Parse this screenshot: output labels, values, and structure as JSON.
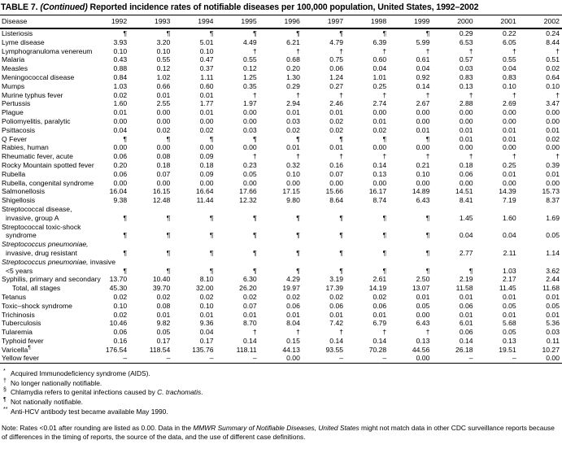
{
  "title": {
    "prefix": "TABLE 7. ",
    "continued": "(Continued)",
    "rest": " Reported incidence rates of notifiable diseases per 100,000 population, United States, 1992–2002"
  },
  "table": {
    "columns": [
      "Disease",
      "1992",
      "1993",
      "1994",
      "1995",
      "1996",
      "1997",
      "1998",
      "1999",
      "2000",
      "2001",
      "2002"
    ],
    "rows": [
      {
        "label": [
          {
            "t": "Listeriosis"
          }
        ],
        "indent": 0,
        "values": [
          "¶",
          "¶",
          "¶",
          "¶",
          "¶",
          "¶",
          "¶",
          "¶",
          "0.29",
          "0.22",
          "0.24"
        ]
      },
      {
        "label": [
          {
            "t": "Lyme disease"
          }
        ],
        "indent": 0,
        "values": [
          "3.93",
          "3.20",
          "5.01",
          "4.49",
          "6.21",
          "4.79",
          "6.39",
          "5.99",
          "6.53",
          "6.05",
          "8.44"
        ]
      },
      {
        "label": [
          {
            "t": "Lymphogranuloma venereum"
          }
        ],
        "indent": 0,
        "values": [
          "0.10",
          "0.10",
          "0.10",
          "†",
          "†",
          "†",
          "†",
          "†",
          "†",
          "†",
          "†"
        ]
      },
      {
        "label": [
          {
            "t": "Malaria"
          }
        ],
        "indent": 0,
        "values": [
          "0.43",
          "0.55",
          "0.47",
          "0.55",
          "0.68",
          "0.75",
          "0.60",
          "0.61",
          "0.57",
          "0.55",
          "0.51"
        ]
      },
      {
        "label": [
          {
            "t": "Measles"
          }
        ],
        "indent": 0,
        "values": [
          "0.88",
          "0.12",
          "0.37",
          "0.12",
          "0.20",
          "0.06",
          "0.04",
          "0.04",
          "0.03",
          "0.04",
          "0.02"
        ]
      },
      {
        "label": [
          {
            "t": "Meningococcal disease"
          }
        ],
        "indent": 0,
        "values": [
          "0.84",
          "1.02",
          "1.11",
          "1.25",
          "1.30",
          "1.24",
          "1.01",
          "0.92",
          "0.83",
          "0.83",
          "0.64"
        ]
      },
      {
        "label": [
          {
            "t": "Mumps"
          }
        ],
        "indent": 0,
        "values": [
          "1.03",
          "0.66",
          "0.60",
          "0.35",
          "0.29",
          "0.27",
          "0.25",
          "0.14",
          "0.13",
          "0.10",
          "0.10"
        ]
      },
      {
        "label": [
          {
            "t": "Murine typhus fever"
          }
        ],
        "indent": 0,
        "values": [
          "0.02",
          "0.01",
          "0.01",
          "†",
          "†",
          "†",
          "†",
          "†",
          "†",
          "†",
          "†"
        ]
      },
      {
        "label": [
          {
            "t": "Pertussis"
          }
        ],
        "indent": 0,
        "values": [
          "1.60",
          "2.55",
          "1.77",
          "1.97",
          "2.94",
          "2.46",
          "2.74",
          "2.67",
          "2.88",
          "2.69",
          "3.47"
        ]
      },
      {
        "label": [
          {
            "t": "Plague"
          }
        ],
        "indent": 0,
        "values": [
          "0.01",
          "0.00",
          "0.01",
          "0.00",
          "0.01",
          "0.01",
          "0.00",
          "0.00",
          "0.00",
          "0.00",
          "0.00"
        ]
      },
      {
        "label": [
          {
            "t": "Poliomyelitis, paralytic"
          }
        ],
        "indent": 0,
        "values": [
          "0.00",
          "0.00",
          "0.00",
          "0.00",
          "0.03",
          "0.02",
          "0.01",
          "0.00",
          "0.00",
          "0.00",
          "0.00"
        ]
      },
      {
        "label": [
          {
            "t": "Psittacosis"
          }
        ],
        "indent": 0,
        "values": [
          "0.04",
          "0.02",
          "0.02",
          "0.03",
          "0.02",
          "0.02",
          "0.02",
          "0.01",
          "0.01",
          "0.01",
          "0.01"
        ]
      },
      {
        "label": [
          {
            "t": "Q Fever"
          }
        ],
        "indent": 0,
        "values": [
          "¶",
          "¶",
          "¶",
          "¶",
          "¶",
          "¶",
          "¶",
          "¶",
          "0.01",
          "0.01",
          "0.02"
        ]
      },
      {
        "label": [
          {
            "t": "Rabies, human"
          }
        ],
        "indent": 0,
        "values": [
          "0.00",
          "0.00",
          "0.00",
          "0.00",
          "0.01",
          "0.01",
          "0.00",
          "0.00",
          "0.00",
          "0.00",
          "0.00"
        ]
      },
      {
        "label": [
          {
            "t": "Rheumatic fever, acute"
          }
        ],
        "indent": 0,
        "values": [
          "0.06",
          "0.08",
          "0.09",
          "†",
          "†",
          "†",
          "†",
          "†",
          "†",
          "†",
          "†"
        ]
      },
      {
        "label": [
          {
            "t": "Rocky Mountain spotted fever"
          }
        ],
        "indent": 0,
        "values": [
          "0.20",
          "0.18",
          "0.18",
          "0.23",
          "0.32",
          "0.16",
          "0.14",
          "0.21",
          "0.18",
          "0.25",
          "0.39"
        ]
      },
      {
        "label": [
          {
            "t": "Rubella"
          }
        ],
        "indent": 0,
        "values": [
          "0.06",
          "0.07",
          "0.09",
          "0.05",
          "0.10",
          "0.07",
          "0.13",
          "0.10",
          "0.06",
          "0.01",
          "0.01"
        ]
      },
      {
        "label": [
          {
            "t": "Rubella, congenital syndrome"
          }
        ],
        "indent": 0,
        "values": [
          "0.00",
          "0.00",
          "0.00",
          "0.00",
          "0.00",
          "0.00",
          "0.00",
          "0.00",
          "0.00",
          "0.00",
          "0.00"
        ]
      },
      {
        "label": [
          {
            "t": "Salmonellosis"
          }
        ],
        "indent": 0,
        "values": [
          "16.04",
          "16.15",
          "16.64",
          "17.66",
          "17.15",
          "15.66",
          "16.17",
          "14.89",
          "14.51",
          "14.39",
          "15.73"
        ]
      },
      {
        "label": [
          {
            "t": "Shigellosis"
          }
        ],
        "indent": 0,
        "values": [
          "9.38",
          "12.48",
          "11.44",
          "12.32",
          "9.80",
          "8.64",
          "8.74",
          "6.43",
          "8.41",
          "7.19",
          "8.37"
        ]
      },
      {
        "label": [
          {
            "t": "Streptococcal disease,"
          }
        ],
        "indent": 0,
        "values": null
      },
      {
        "label": [
          {
            "t": "invasive, group A"
          }
        ],
        "indent": 1,
        "values": [
          "¶",
          "¶",
          "¶",
          "¶",
          "¶",
          "¶",
          "¶",
          "¶",
          "1.45",
          "1.60",
          "1.69"
        ]
      },
      {
        "label": [
          {
            "t": "Streptococcal toxic-shock"
          }
        ],
        "indent": 0,
        "values": null
      },
      {
        "label": [
          {
            "t": "syndrome"
          }
        ],
        "indent": 1,
        "values": [
          "¶",
          "¶",
          "¶",
          "¶",
          "¶",
          "¶",
          "¶",
          "¶",
          "0.04",
          "0.04",
          "0.05"
        ]
      },
      {
        "label": [
          {
            "t": "Streptococcus pneumoniae,",
            "i": true
          }
        ],
        "indent": 0,
        "values": null
      },
      {
        "label": [
          {
            "t": "invasive, drug resistant"
          }
        ],
        "indent": 1,
        "values": [
          "¶",
          "¶",
          "¶",
          "¶",
          "¶",
          "¶",
          "¶",
          "¶",
          "2.77",
          "2.11",
          "1.14"
        ]
      },
      {
        "label": [
          {
            "t": "Streptococcus pneumoniae,",
            "i": true
          },
          {
            "t": " invasive"
          }
        ],
        "indent": 0,
        "values": null
      },
      {
        "label": [
          {
            "t": "<5 years"
          }
        ],
        "indent": 1,
        "values": [
          "¶",
          "¶",
          "¶",
          "¶",
          "¶",
          "¶",
          "¶",
          "¶",
          "¶",
          "1.03",
          "3.62"
        ]
      },
      {
        "label": [
          {
            "t": "Syphilis, primary and secondary"
          }
        ],
        "indent": 0,
        "values": [
          "13.70",
          "10.40",
          "8.10",
          "6.30",
          "4.29",
          "3.19",
          "2.61",
          "2.50",
          "2.19",
          "2.17",
          "2.44"
        ]
      },
      {
        "label": [
          {
            "t": "Total, all stages"
          }
        ],
        "indent": 2,
        "values": [
          "45.30",
          "39.70",
          "32.00",
          "26.20",
          "19.97",
          "17.39",
          "14.19",
          "13.07",
          "11.58",
          "11.45",
          "11.68"
        ]
      },
      {
        "label": [
          {
            "t": "Tetanus"
          }
        ],
        "indent": 0,
        "values": [
          "0.02",
          "0.02",
          "0.02",
          "0.02",
          "0.02",
          "0.02",
          "0.02",
          "0.01",
          "0.01",
          "0.01",
          "0.01"
        ]
      },
      {
        "label": [
          {
            "t": "Toxic–shock syndrome"
          }
        ],
        "indent": 0,
        "values": [
          "0.10",
          "0.08",
          "0.10",
          "0.07",
          "0.06",
          "0.06",
          "0.06",
          "0.05",
          "0.06",
          "0.05",
          "0.05"
        ]
      },
      {
        "label": [
          {
            "t": "Trichinosis"
          }
        ],
        "indent": 0,
        "values": [
          "0.02",
          "0.01",
          "0.01",
          "0.01",
          "0.01",
          "0.01",
          "0.01",
          "0.00",
          "0.01",
          "0.01",
          "0.01"
        ]
      },
      {
        "label": [
          {
            "t": "Tuberculosis"
          }
        ],
        "indent": 0,
        "values": [
          "10.46",
          "9.82",
          "9.36",
          "8.70",
          "8.04",
          "7.42",
          "6.79",
          "6.43",
          "6.01",
          "5.68",
          "5.36"
        ]
      },
      {
        "label": [
          {
            "t": "Tularemia"
          }
        ],
        "indent": 0,
        "values": [
          "0.06",
          "0.05",
          "0.04",
          "†",
          "†",
          "†",
          "†",
          "†",
          "0.06",
          "0.05",
          "0.03"
        ]
      },
      {
        "label": [
          {
            "t": "Typhoid fever"
          }
        ],
        "indent": 0,
        "values": [
          "0.16",
          "0.17",
          "0.17",
          "0.14",
          "0.15",
          "0.14",
          "0.14",
          "0.13",
          "0.14",
          "0.13",
          "0.11"
        ]
      },
      {
        "label": [
          {
            "t": "Varicella"
          },
          {
            "t": "¶",
            "sup": true
          }
        ],
        "indent": 0,
        "values": [
          "176.54",
          "118.54",
          "135.76",
          "118.11",
          "44.13",
          "93.55",
          "70.28",
          "44.56",
          "26.18",
          "19.51",
          "10.27"
        ]
      },
      {
        "label": [
          {
            "t": "Yellow fever"
          }
        ],
        "indent": 0,
        "values": [
          "–",
          "–",
          "–",
          "–",
          "0.00",
          "–",
          "–",
          "0.00",
          "–",
          "–",
          "0.00"
        ]
      }
    ]
  },
  "footnotes": [
    {
      "symbol": "*",
      "parts": [
        {
          "t": "Acquired Immunodeficiency syndrome (AIDS)."
        }
      ]
    },
    {
      "symbol": "†",
      "parts": [
        {
          "t": "No longer nationally notifiable."
        }
      ]
    },
    {
      "symbol": "§",
      "parts": [
        {
          "t": "Chlamydia refers to genital infections caused by "
        },
        {
          "t": "C. trachomatis",
          "i": true
        },
        {
          "t": "."
        }
      ]
    },
    {
      "symbol": "¶",
      "parts": [
        {
          "t": "Not nationally notifiable."
        }
      ]
    },
    {
      "symbol": "**",
      "parts": [
        {
          "t": "Anti-HCV antibody test became available May 1990."
        }
      ]
    }
  ],
  "note": {
    "parts": [
      {
        "t": "Note: Rates <0.01 after rounding are listed as 0.00. Data in the "
      },
      {
        "t": "MMWR Summary of Notifiable Diseases, United States",
        "i": true
      },
      {
        "t": " might not match data in other CDC surveillance reports because of differences in the timing of reports, the source of the data, and the use of different case definitions."
      }
    ]
  }
}
